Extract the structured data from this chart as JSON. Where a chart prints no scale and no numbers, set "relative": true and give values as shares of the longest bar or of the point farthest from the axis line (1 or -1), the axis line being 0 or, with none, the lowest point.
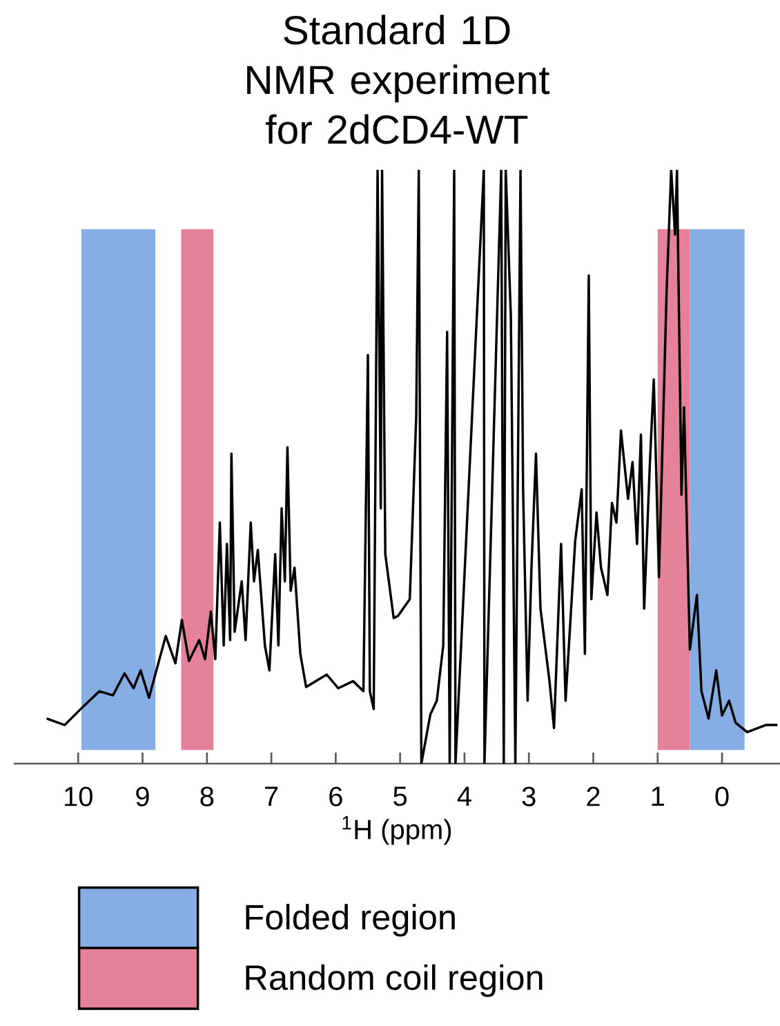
{
  "chart_data": {
    "type": "line",
    "title": "Standard 1D NMR experiment for 2dCD4-WT",
    "xlabel": "$^{1}$H (ppm)",
    "relative": true,
    "xlim": [
      11,
      -0.9
    ],
    "xticks": [
      10,
      9,
      8,
      7,
      6,
      5,
      4,
      3,
      2,
      1,
      0
    ],
    "legend": "bottom",
    "series": [
      {
        "color": "#000000",
        "x": [
          10.49,
          10.21,
          9.96,
          9.67,
          9.46,
          9.28,
          9.14,
          9.03,
          8.9,
          8.64,
          8.49,
          8.39,
          8.28,
          8.12,
          8.03,
          7.94,
          7.87,
          7.8,
          7.74,
          7.69,
          7.64,
          7.62,
          7.57,
          7.46,
          7.4,
          7.32,
          7.27,
          7.21,
          7.1,
          7.03,
          6.94,
          6.89,
          6.84,
          6.79,
          6.75,
          6.7,
          6.64,
          6.55,
          6.46,
          6.14,
          5.96,
          5.73,
          5.57,
          5.5,
          5.47,
          5.41,
          5.35,
          5.3,
          5.28,
          5.23,
          5.1,
          5.03,
          4.85,
          4.75,
          4.71,
          4.67,
          4.53,
          4.43,
          4.33,
          4.27,
          4.23,
          4.16,
          4.14,
          3.7,
          3.69,
          3.43,
          3.39,
          3.36,
          3.28,
          3.21,
          3.13,
          3.09,
          3.02,
          2.96,
          2.89,
          2.82,
          2.68,
          2.61,
          2.5,
          2.43,
          2.28,
          2.18,
          2.13,
          2.07,
          2.03,
          1.95,
          1.88,
          1.78,
          1.71,
          1.64,
          1.57,
          1.46,
          1.39,
          1.32,
          1.26,
          1.21,
          1.12,
          1.06,
          0.98,
          0.86,
          0.79,
          0.73,
          0.7,
          0.63,
          0.59,
          0.5,
          0.39,
          0.32,
          0.21,
          0.09,
          0.0,
          -0.11,
          -0.21,
          -0.39,
          -0.68,
          -0.86
        ],
        "values": [
          0.076,
          0.065,
          0.092,
          0.122,
          0.115,
          0.152,
          0.127,
          0.157,
          0.111,
          0.215,
          0.169,
          0.242,
          0.173,
          0.208,
          0.176,
          0.256,
          0.176,
          0.406,
          0.199,
          0.37,
          0.208,
          0.522,
          0.222,
          0.307,
          0.208,
          0.406,
          0.307,
          0.36,
          0.199,
          0.157,
          0.353,
          0.199,
          0.43,
          0.307,
          0.533,
          0.291,
          0.33,
          0.185,
          0.129,
          0.15,
          0.127,
          0.139,
          0.122,
          0.688,
          0.122,
          0.092,
          1,
          0.43,
          1,
          0.353,
          0.245,
          0.249,
          0.277,
          0.584,
          1,
          0,
          0.083,
          0.106,
          0.199,
          0.727,
          0,
          1,
          0,
          1,
          0,
          1,
          0,
          1,
          0.753,
          0,
          1,
          0.462,
          0.106,
          0.33,
          0.522,
          0.261,
          0.139,
          0.06,
          0.37,
          0.106,
          0.376,
          0.462,
          0.185,
          0.822,
          0.277,
          0.423,
          0.33,
          0.284,
          0.439,
          0.406,
          0.561,
          0.446,
          0.508,
          0.37,
          0.554,
          0.261,
          0.508,
          0.647,
          0.314,
          0.799,
          1,
          0.891,
          1,
          0.453,
          0.6,
          0.192,
          0.284,
          0.122,
          0.076,
          0.157,
          0.081,
          0.106,
          0.069,
          0.053,
          0.065,
          0.065
        ]
      }
    ],
    "bands": [
      {
        "axis": "x",
        "from": 9.95,
        "to": 8.8,
        "color": "#86aee4",
        "label": "Folded region"
      },
      {
        "axis": "x",
        "from": 8.4,
        "to": 7.9,
        "color": "#e5829a",
        "label": "Random coil region"
      },
      {
        "axis": "x",
        "from": 1.0,
        "to": 0.5,
        "color": "#e5829a"
      },
      {
        "axis": "x",
        "from": 0.5,
        "to": -0.35,
        "color": "#86aee4"
      }
    ]
  }
}
